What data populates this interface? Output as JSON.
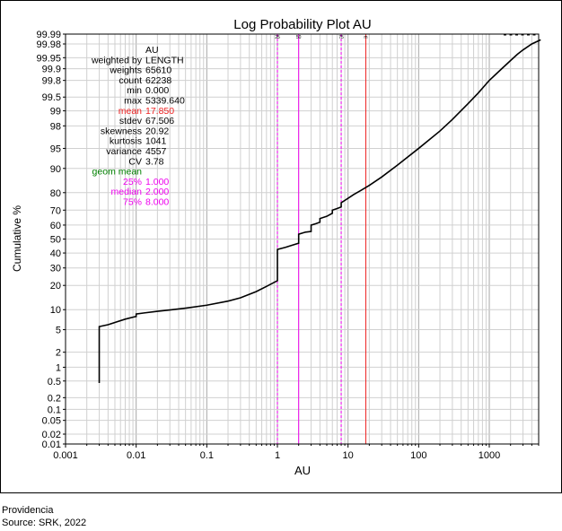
{
  "chart_data": {
    "type": "line",
    "title": "Log Probability Plot AU",
    "xlabel": "AU",
    "ylabel": "Cumulative %",
    "x_scale": "log",
    "y_scale": "probability",
    "xlim": [
      0.001,
      5000
    ],
    "ylim": [
      0.01,
      99.99
    ],
    "grid": true,
    "x_ticks": [
      {
        "v": 0.001,
        "label": "0.001"
      },
      {
        "v": 0.01,
        "label": "0.01"
      },
      {
        "v": 0.1,
        "label": "0.1"
      },
      {
        "v": 1,
        "label": "1"
      },
      {
        "v": 10,
        "label": "10"
      },
      {
        "v": 100,
        "label": "100"
      },
      {
        "v": 1000,
        "label": "1000"
      }
    ],
    "y_ticks": [
      {
        "v": 0.01,
        "label": "0.01"
      },
      {
        "v": 0.02,
        "label": "0.02"
      },
      {
        "v": 0.05,
        "label": "0.05"
      },
      {
        "v": 0.1,
        "label": "0.1"
      },
      {
        "v": 0.2,
        "label": "0.2"
      },
      {
        "v": 0.5,
        "label": "0.5"
      },
      {
        "v": 1,
        "label": "1"
      },
      {
        "v": 2,
        "label": "2"
      },
      {
        "v": 5,
        "label": "5"
      },
      {
        "v": 10,
        "label": "10"
      },
      {
        "v": 20,
        "label": "20"
      },
      {
        "v": 30,
        "label": "30"
      },
      {
        "v": 40,
        "label": "40"
      },
      {
        "v": 50,
        "label": "50"
      },
      {
        "v": 60,
        "label": "60"
      },
      {
        "v": 70,
        "label": "70"
      },
      {
        "v": 80,
        "label": "80"
      },
      {
        "v": 90,
        "label": "90"
      },
      {
        "v": 95,
        "label": "95"
      },
      {
        "v": 98,
        "label": "98"
      },
      {
        "v": 99,
        "label": "99"
      },
      {
        "v": 99.5,
        "label": "99.5"
      },
      {
        "v": 99.8,
        "label": "99.8"
      },
      {
        "v": 99.9,
        "label": "99.9"
      },
      {
        "v": 99.95,
        "label": "99.95"
      },
      {
        "v": 99.98,
        "label": "99.98"
      },
      {
        "v": 99.99,
        "label": "99.99"
      }
    ],
    "reference_lines": [
      {
        "x": 1,
        "top_label": "25",
        "color": "#ee00ee",
        "dash": "3,2"
      },
      {
        "x": 2,
        "top_label": "50",
        "color": "#ee00ee",
        "dash": ""
      },
      {
        "x": 8,
        "top_label": "75",
        "color": "#ee00ee",
        "dash": "3,2"
      },
      {
        "x": 17.85,
        "top_label": "m",
        "color": "#ee2222",
        "dash": ""
      }
    ],
    "series": [
      {
        "color": "#000000",
        "points": [
          [
            0.003,
            0.45
          ],
          [
            0.003,
            5.6
          ],
          [
            0.004,
            6.0
          ],
          [
            0.005,
            6.5
          ],
          [
            0.007,
            7.3
          ],
          [
            0.009,
            7.8
          ],
          [
            0.01,
            8.0
          ],
          [
            0.01,
            8.7
          ],
          [
            0.013,
            9.0
          ],
          [
            0.02,
            9.5
          ],
          [
            0.03,
            9.9
          ],
          [
            0.05,
            10.5
          ],
          [
            0.1,
            11.5
          ],
          [
            0.2,
            13.0
          ],
          [
            0.3,
            14.3
          ],
          [
            0.5,
            17.0
          ],
          [
            0.7,
            19.5
          ],
          [
            1,
            22.5
          ],
          [
            1,
            42.5
          ],
          [
            1.3,
            44.0
          ],
          [
            1.6,
            45.5
          ],
          [
            2,
            47.0
          ],
          [
            2,
            53.5
          ],
          [
            2.5,
            55.0
          ],
          [
            3,
            55.5
          ],
          [
            3,
            60.0
          ],
          [
            3.5,
            61.0
          ],
          [
            4,
            62.0
          ],
          [
            4,
            64.5
          ],
          [
            5,
            66.0
          ],
          [
            6,
            68.0
          ],
          [
            6,
            70.0
          ],
          [
            7,
            71.0
          ],
          [
            8,
            72.0
          ],
          [
            8,
            74.5
          ],
          [
            10,
            77.0
          ],
          [
            12,
            79.0
          ],
          [
            15,
            81.0
          ],
          [
            20,
            83.5
          ],
          [
            30,
            87.0
          ],
          [
            50,
            91.0
          ],
          [
            100,
            95.0
          ],
          [
            200,
            97.5
          ],
          [
            300,
            98.5
          ],
          [
            500,
            99.3
          ],
          [
            700,
            99.6
          ],
          [
            1000,
            99.8
          ],
          [
            1500,
            99.9
          ],
          [
            2000,
            99.94
          ],
          [
            2500,
            99.96
          ],
          [
            3000,
            99.97
          ],
          [
            4000,
            99.98
          ],
          [
            5339.64,
            99.985
          ]
        ]
      }
    ],
    "stats": [
      {
        "label": "",
        "value": "AU",
        "color": "#000000"
      },
      {
        "label": "weighted by",
        "value": "LENGTH",
        "color": "#000000"
      },
      {
        "label": "weights",
        "value": "65610",
        "color": "#000000"
      },
      {
        "label": "count",
        "value": "62238",
        "color": "#000000"
      },
      {
        "label": "min",
        "value": "0.000",
        "color": "#000000"
      },
      {
        "label": "max",
        "value": "5339.640",
        "color": "#000000"
      },
      {
        "label": "mean",
        "value": "17.850",
        "color": "#ee2222"
      },
      {
        "label": "stdev",
        "value": "67.506",
        "color": "#000000"
      },
      {
        "label": "skewness",
        "value": "20.92",
        "color": "#000000"
      },
      {
        "label": "kurtosis",
        "value": "1041",
        "color": "#000000"
      },
      {
        "label": "variance",
        "value": "4557",
        "color": "#000000"
      },
      {
        "label": "CV",
        "value": "3.78",
        "color": "#000000"
      },
      {
        "label": "geom mean",
        "value": "",
        "color": "#008000"
      },
      {
        "label": "25%",
        "value": "1.000",
        "color": "#ee00ee"
      },
      {
        "label": "median",
        "value": "2.000",
        "color": "#ee00ee"
      },
      {
        "label": "75%",
        "value": "8.000",
        "color": "#ee00ee"
      }
    ]
  },
  "caption": {
    "line1": "Providencia",
    "line2": "Source: SRK, 2022"
  }
}
